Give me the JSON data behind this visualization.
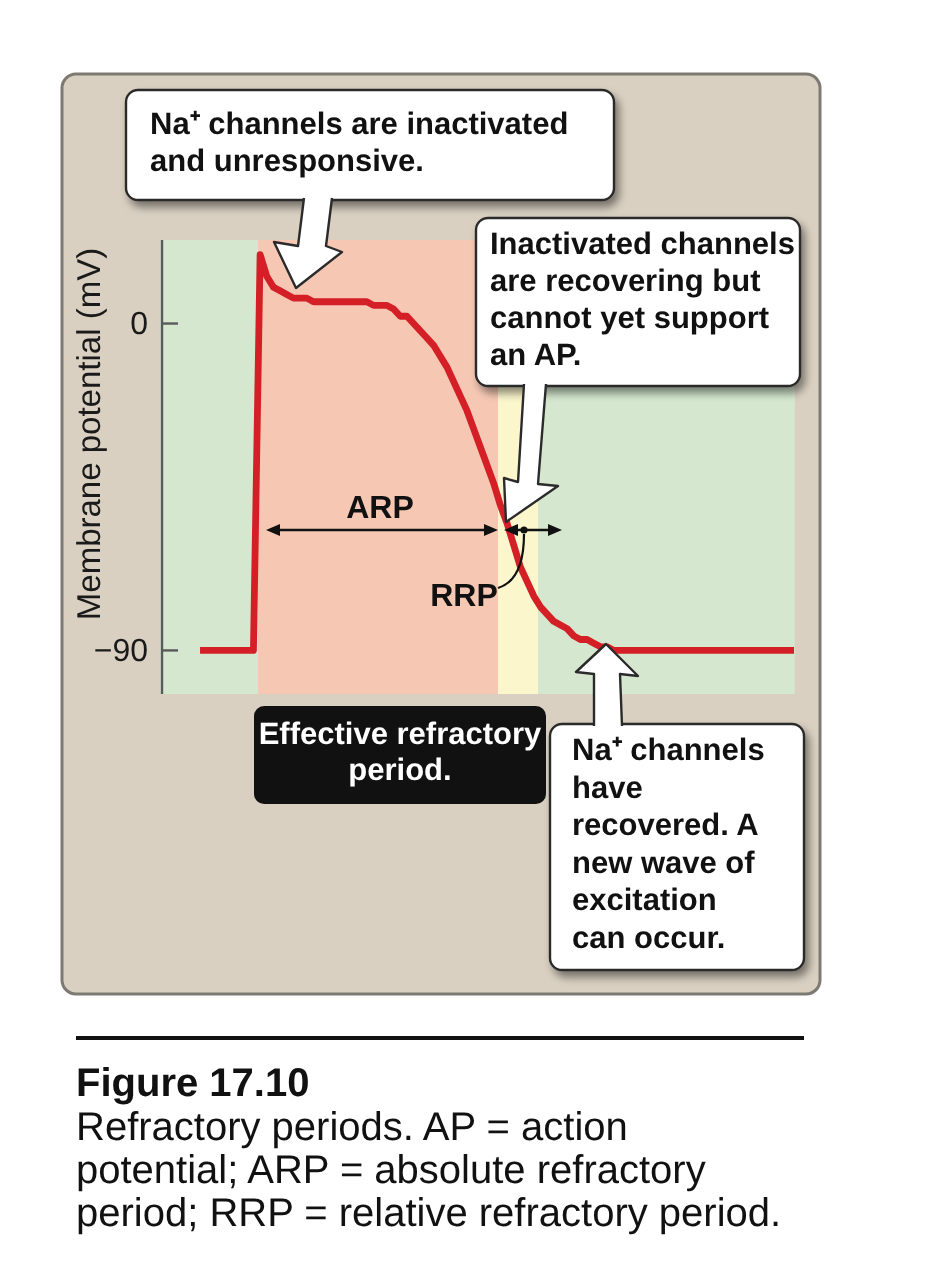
{
  "chart_data": {
    "type": "line",
    "title": "Figure 17.10",
    "subtitle": "Refractory periods. AP = action potential; ARP = absolute refractory period; RRP = relative refractory period.",
    "ylabel": "Membrane potential (mV)",
    "categories": [
      null,
      null,
      null,
      null,
      null,
      null,
      null,
      null,
      null,
      null,
      null,
      null,
      null,
      null,
      null,
      null,
      null,
      null,
      null,
      null,
      null,
      null,
      null,
      null,
      null,
      null,
      null,
      null,
      null,
      null,
      null,
      null,
      null,
      null,
      null,
      null,
      null,
      null,
      null,
      null,
      null,
      null,
      null,
      null,
      null,
      null,
      null,
      null,
      null,
      null,
      null,
      null,
      null,
      null,
      null,
      null,
      null,
      null,
      null,
      null,
      null,
      null,
      null,
      null,
      null,
      null,
      null,
      null,
      null,
      null,
      null,
      null,
      null,
      null,
      null,
      null,
      null,
      null,
      null,
      null,
      null,
      null,
      null,
      null,
      null,
      null,
      null,
      null,
      null,
      null,
      null,
      null,
      null,
      null,
      null,
      null
    ],
    "series": [
      {
        "color": "#d41f27",
        "values": [
          null,
          null,
          null,
          null,
          null,
          null,
          -90,
          -90,
          -90,
          -90,
          -90,
          -90,
          -90,
          -90,
          -90,
          19,
          13,
          10,
          9,
          8,
          7,
          7,
          7,
          6,
          6,
          6,
          6,
          6,
          6,
          6,
          6,
          6,
          5,
          5,
          5,
          4,
          2,
          2,
          0,
          -2,
          -4,
          -6,
          -9,
          -12,
          -16,
          -20,
          -24,
          -29,
          -34,
          -39,
          -44,
          -50,
          -55,
          -61,
          -67,
          -71,
          -75,
          -78,
          -80,
          -82,
          -83,
          -84,
          -86,
          -87,
          -87,
          -88,
          -89,
          -89,
          -90,
          -90,
          -90,
          -90,
          -90,
          -90,
          -90,
          -90,
          -90,
          -90,
          -90,
          -90,
          -90,
          -90,
          -90,
          -90,
          -90,
          -90,
          -90,
          -90,
          -90,
          -90,
          -90,
          -90,
          -90,
          -90,
          -90,
          -90
        ]
      }
    ],
    "ylim": [
      -102,
      23
    ],
    "yticks": [
      -90,
      0
    ],
    "tick_labels": "y",
    "annotations": [
      "Na⁺ channels are inactivated and unresponsive.",
      "Inactivated channels are recovering but cannot yet support an AP.",
      "ARP",
      "RRP",
      "Effective refractory period.",
      "Na⁺ channels have recovered. A new wave of excitation can occur."
    ]
  }
}
